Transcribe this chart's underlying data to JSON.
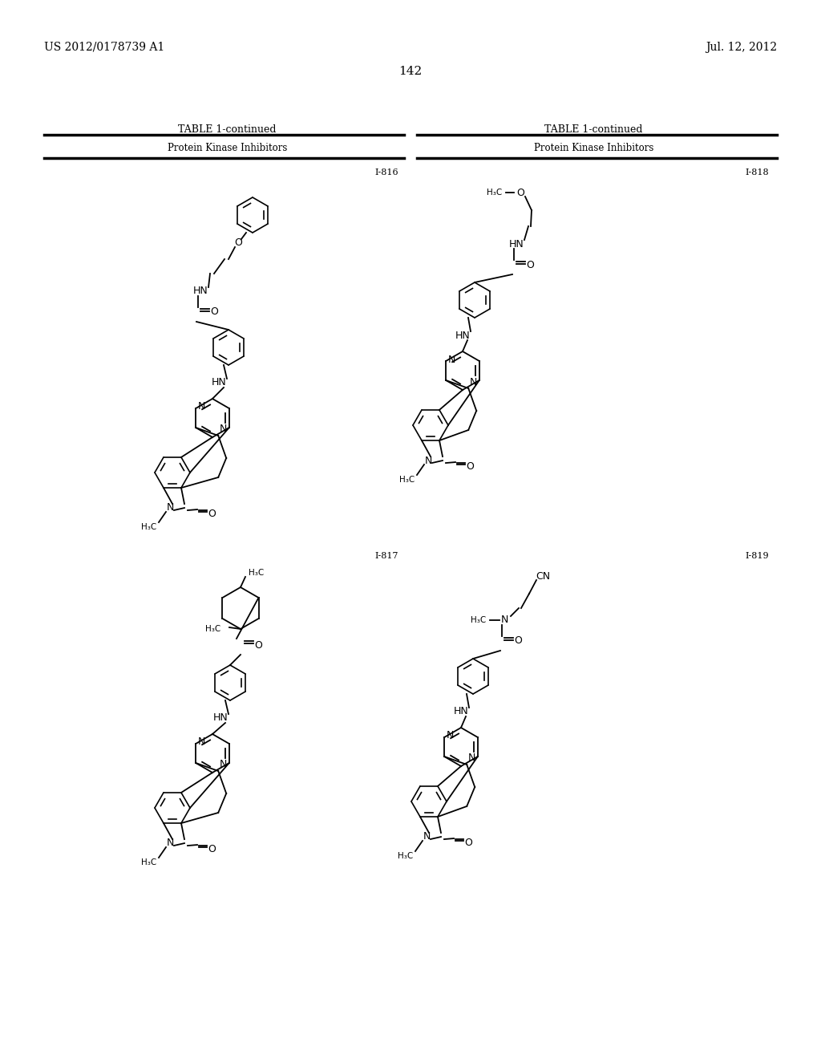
{
  "background_color": "#ffffff",
  "page_header_left": "US 2012/0178739 A1",
  "page_header_right": "Jul. 12, 2012",
  "page_number": "142",
  "table_title": "TABLE 1-continued",
  "table_subtitle": "Protein Kinase Inhibitors",
  "compound_labels": [
    "I-816",
    "I-817",
    "I-818",
    "I-819"
  ],
  "font_color": "#000000",
  "line_color": "#000000"
}
